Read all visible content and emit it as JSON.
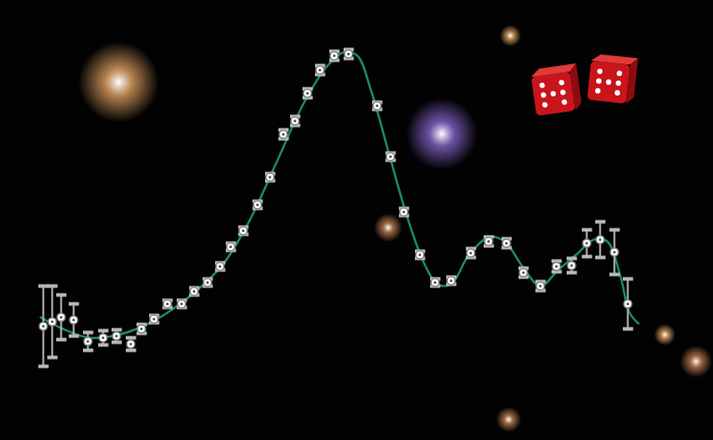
{
  "chart_data": {
    "type": "scatter",
    "xlim": [
      0,
      799
    ],
    "ylim": [
      0,
      493
    ],
    "tick_labels": false,
    "grid": false,
    "series": [
      {
        "type": "scatter",
        "color": "#ffffff",
        "marker": "circle",
        "x": [
          48,
          58,
          68,
          82,
          98,
          115,
          130,
          146,
          158,
          172,
          187,
          203,
          217,
          232,
          246,
          258,
          272,
          288,
          302,
          317,
          330,
          344,
          358,
          374,
          390,
          422,
          437,
          452,
          470,
          487,
          505,
          527,
          547,
          567,
          586,
          605,
          623,
          640,
          657,
          672,
          688,
          703
        ],
        "values": [
          128,
          133,
          138,
          135,
          111,
          115,
          117,
          108,
          125,
          136,
          153,
          153,
          167,
          177,
          195,
          217,
          235,
          264,
          295,
          343,
          358,
          389,
          415,
          431,
          433,
          375,
          318,
          256,
          208,
          177,
          179,
          210,
          223,
          221,
          188,
          173,
          195,
          196,
          221,
          225,
          211,
          153
        ],
        "errors": [
          45,
          40,
          25,
          18,
          10,
          8,
          7,
          7,
          5,
          4,
          4,
          4,
          4,
          4,
          4,
          4,
          4,
          4,
          4,
          5,
          5,
          5,
          5,
          5,
          5,
          4,
          4,
          4,
          4,
          4,
          4,
          5,
          5,
          5,
          5,
          5,
          6,
          8,
          15,
          20,
          25,
          28
        ]
      },
      {
        "type": "line",
        "color": "#1a8c5c",
        "line_style": "solid",
        "x": [
          45,
          70,
          100,
          130,
          160,
          190,
          220,
          250,
          280,
          310,
          340,
          365,
          385,
          400,
          415,
          435,
          455,
          475,
          490,
          505,
          525,
          548,
          565,
          585,
          605,
          625,
          645,
          665,
          680,
          695,
          705,
          715
        ],
        "values": [
          138,
          125,
          115,
          118,
          128,
          145,
          168,
          198,
          248,
          313,
          378,
          418,
          435,
          431,
          393,
          323,
          253,
          198,
          175,
          175,
          208,
          228,
          223,
          195,
          173,
          191,
          208,
          225,
          223,
          183,
          143,
          131
        ]
      }
    ]
  }
}
